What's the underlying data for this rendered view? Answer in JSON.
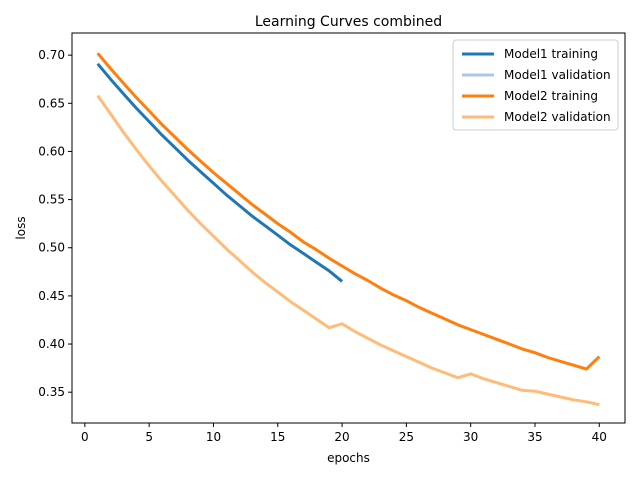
{
  "chart_data": {
    "type": "line",
    "title": "Learning Curves combined",
    "xlabel": "epochs",
    "ylabel": "loss",
    "xlim": [
      -1,
      42
    ],
    "ylim": [
      0.318,
      0.723
    ],
    "xticks": [
      0,
      5,
      10,
      15,
      20,
      25,
      30,
      35,
      40
    ],
    "yticks": [
      0.35,
      0.4,
      0.45,
      0.5,
      0.55,
      0.6,
      0.65,
      0.7
    ],
    "grid": false,
    "legend_position": "top-right",
    "series": [
      {
        "name": "Model1 training",
        "color": "#1f77b4",
        "x": [
          1,
          2,
          3,
          4,
          5,
          6,
          7,
          8,
          9,
          10,
          11,
          12,
          13,
          14,
          15,
          16,
          17,
          18,
          19,
          20
        ],
        "values": [
          0.691,
          0.675,
          0.66,
          0.645,
          0.631,
          0.617,
          0.604,
          0.591,
          0.579,
          0.567,
          0.555,
          0.544,
          0.533,
          0.523,
          0.513,
          0.503,
          0.494,
          0.485,
          0.476,
          0.465
        ]
      },
      {
        "name": "Model1 validation",
        "color": "#aec7e8",
        "x": [],
        "values": []
      },
      {
        "name": "Model2 training",
        "color": "#ff7f0e",
        "x": [
          1,
          2,
          3,
          4,
          5,
          6,
          7,
          8,
          9,
          10,
          11,
          12,
          13,
          14,
          15,
          16,
          17,
          18,
          19,
          20,
          21,
          22,
          23,
          24,
          25,
          26,
          27,
          28,
          29,
          30,
          31,
          32,
          33,
          34,
          35,
          36,
          37,
          38,
          39,
          40
        ],
        "values": [
          0.702,
          0.686,
          0.671,
          0.656,
          0.642,
          0.628,
          0.615,
          0.602,
          0.59,
          0.578,
          0.567,
          0.556,
          0.545,
          0.535,
          0.525,
          0.516,
          0.506,
          0.498,
          0.489,
          0.481,
          0.473,
          0.466,
          0.458,
          0.451,
          0.445,
          0.438,
          0.432,
          0.426,
          0.42,
          0.415,
          0.41,
          0.405,
          0.4,
          0.395,
          0.391,
          0.386,
          0.382,
          0.378,
          0.374,
          0.387
        ]
      },
      {
        "name": "Model2 validation",
        "color": "#ffbb78",
        "x": [
          1,
          2,
          3,
          4,
          5,
          6,
          7,
          8,
          9,
          10,
          11,
          12,
          13,
          14,
          15,
          16,
          17,
          18,
          19,
          20,
          21,
          22,
          23,
          24,
          25,
          26,
          27,
          28,
          29,
          30,
          31,
          32,
          33,
          34,
          35,
          36,
          37,
          38,
          39,
          40
        ],
        "values": [
          0.658,
          0.639,
          0.62,
          0.602,
          0.585,
          0.569,
          0.554,
          0.539,
          0.525,
          0.512,
          0.499,
          0.487,
          0.475,
          0.464,
          0.454,
          0.444,
          0.435,
          0.426,
          0.417,
          0.421,
          0.413,
          0.406,
          0.399,
          0.393,
          0.387,
          0.381,
          0.375,
          0.37,
          0.365,
          0.369,
          0.364,
          0.36,
          0.356,
          0.352,
          0.351,
          0.348,
          0.345,
          0.342,
          0.34,
          0.337
        ]
      }
    ]
  }
}
